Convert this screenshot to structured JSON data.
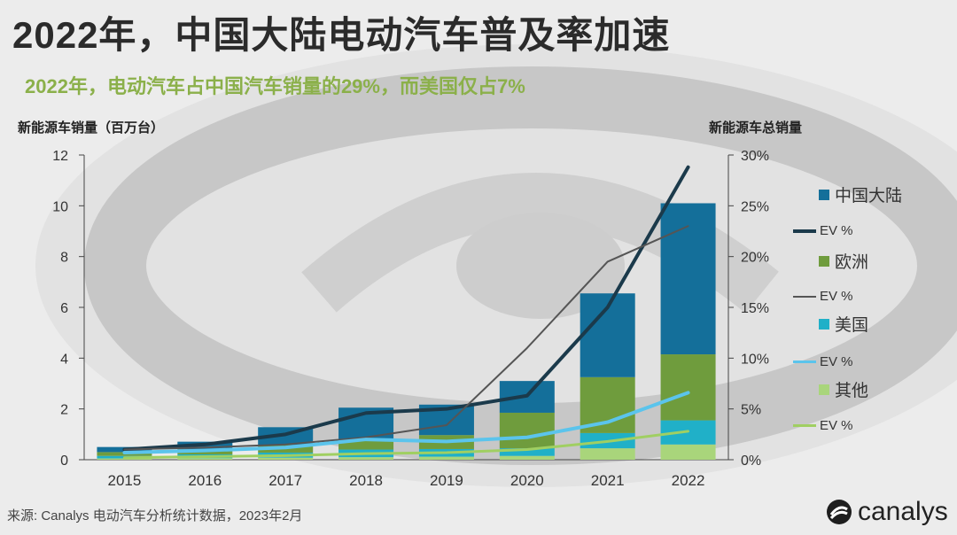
{
  "header": {
    "title": "2022年，中国大陆电动汽车普及率加速",
    "subtitle": "2022年，电动汽车占中国汽车销量的29%，而美国仅占7%"
  },
  "chart_data": {
    "type": "bar",
    "stacked": true,
    "categories": [
      "2015",
      "2016",
      "2017",
      "2018",
      "2019",
      "2020",
      "2021",
      "2022"
    ],
    "y_left": {
      "label": "新能源车销量（百万台）",
      "ticks": [
        "0",
        "2",
        "4",
        "6",
        "8",
        "10",
        "12"
      ],
      "lim": [
        0,
        12
      ]
    },
    "y_right": {
      "label": "新能源车总销量",
      "ticks": [
        "0%",
        "5%",
        "10%",
        "15%",
        "20%",
        "25%",
        "30%"
      ],
      "lim": [
        0,
        30
      ]
    },
    "series": [
      {
        "name": "其他",
        "kind": "bar",
        "color": "#a9d57b",
        "values": [
          0.05,
          0.06,
          0.08,
          0.1,
          0.12,
          0.15,
          0.45,
          0.6
        ]
      },
      {
        "name": "美国",
        "kind": "bar",
        "color": "#20b0c8",
        "values": [
          0.1,
          0.15,
          0.2,
          0.3,
          0.3,
          0.3,
          0.6,
          0.95
        ]
      },
      {
        "name": "欧洲",
        "kind": "bar",
        "color": "#6f9c3d",
        "values": [
          0.15,
          0.2,
          0.3,
          0.4,
          0.55,
          1.4,
          2.2,
          2.6
        ]
      },
      {
        "name": "中国大陆",
        "kind": "bar",
        "color": "#146f9a",
        "values": [
          0.2,
          0.3,
          0.7,
          1.25,
          1.2,
          1.25,
          3.3,
          5.95
        ]
      },
      {
        "name": "EV %",
        "kind": "line",
        "axis": "right",
        "color": "#1b3a4b",
        "width": 4,
        "for": "中国大陆",
        "values": [
          1.0,
          1.5,
          2.5,
          4.6,
          5.0,
          6.3,
          15.0,
          28.8
        ]
      },
      {
        "name": "EV %",
        "kind": "line",
        "axis": "right",
        "color": "#555555",
        "width": 2,
        "for": "欧洲",
        "values": [
          1.0,
          1.2,
          1.5,
          2.2,
          3.4,
          11.0,
          19.5,
          23.0
        ]
      },
      {
        "name": "EV %",
        "kind": "line",
        "axis": "right",
        "color": "#5bc4ec",
        "width": 4,
        "for": "美国",
        "values": [
          0.7,
          0.9,
          1.2,
          2.0,
          1.8,
          2.2,
          3.7,
          6.6
        ]
      },
      {
        "name": "EV %",
        "kind": "line",
        "axis": "right",
        "color": "#a0cf62",
        "width": 3,
        "for": "其他",
        "values": [
          0.2,
          0.3,
          0.4,
          0.6,
          0.7,
          1.0,
          1.8,
          2.8
        ]
      }
    ],
    "legend": {
      "position": "right"
    },
    "grid": false
  },
  "legend": {
    "china": "中国大陆",
    "china_ev": "EV %",
    "europe": "欧洲",
    "europe_ev": "EV %",
    "us": "美国",
    "us_ev": "EV %",
    "other": "其他",
    "other_ev": "EV %"
  },
  "footer": {
    "source": "来源: Canalys 电动汽车分析统计数据，2023年2月",
    "brand": "canalys"
  },
  "colors": {
    "china": "#146f9a",
    "europe": "#6f9c3d",
    "us": "#20b0c8",
    "other": "#a9d57b",
    "title": "#2b2b2b",
    "subtitle": "#8bb04a"
  }
}
